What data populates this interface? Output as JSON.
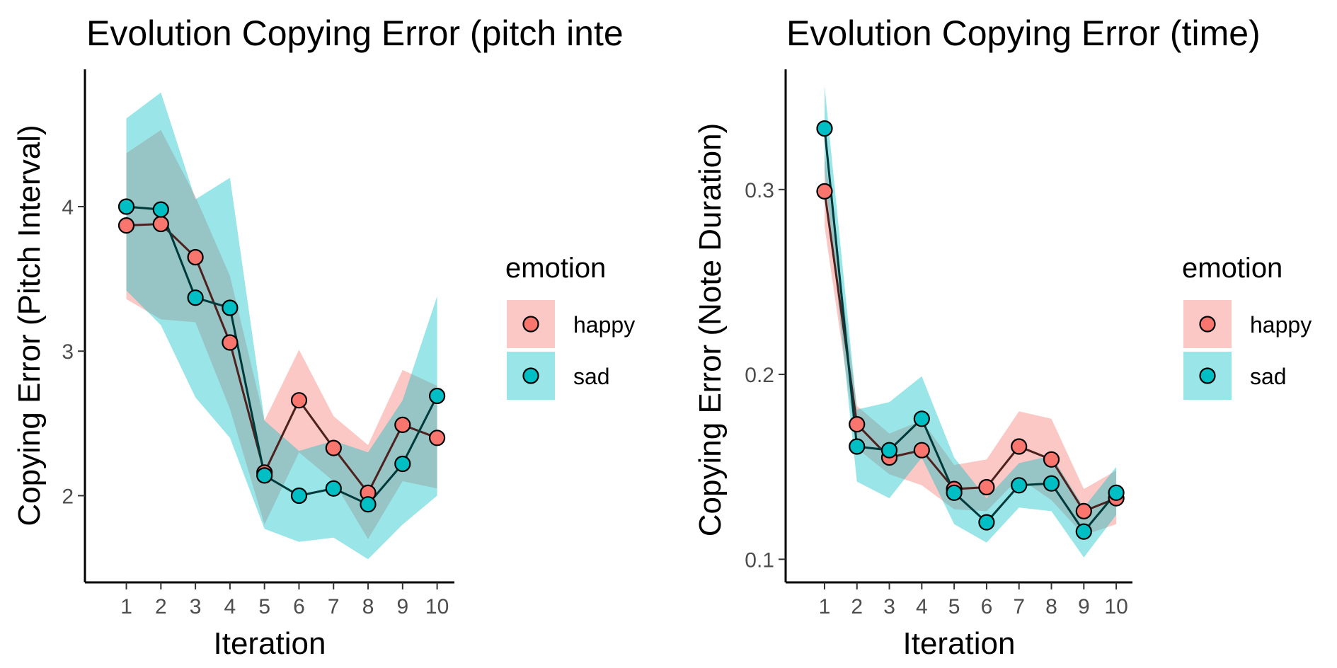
{
  "colors": {
    "happy": "#F8766D",
    "sad": "#00BFC4",
    "ribbon_alpha": 0.4,
    "point_stroke": "#000000"
  },
  "legend": {
    "title": "emotion",
    "items": [
      {
        "key": "happy",
        "label": "happy"
      },
      {
        "key": "sad",
        "label": "sad"
      }
    ]
  },
  "chart_data": [
    {
      "type": "line",
      "title": "Evolution Copying Error (pitch inte",
      "xlabel": "Iteration",
      "ylabel": "Copying Error (Pitch Interval)",
      "x": [
        1,
        2,
        3,
        4,
        5,
        6,
        7,
        8,
        9,
        10
      ],
      "xlim": [
        -0.2,
        10.5
      ],
      "ylim": [
        1.4,
        4.95
      ],
      "yticks": [
        2,
        3,
        4
      ],
      "ytick_labels": [
        "2",
        "3",
        "4"
      ],
      "grid": false,
      "legend_position": "right",
      "series": [
        {
          "name": "happy",
          "color_key": "happy",
          "y": [
            3.87,
            3.88,
            3.65,
            3.06,
            2.16,
            2.66,
            2.33,
            2.02,
            2.49,
            2.4
          ],
          "lower": [
            3.36,
            3.22,
            3.2,
            2.6,
            1.8,
            2.3,
            2.1,
            1.7,
            2.1,
            2.05
          ],
          "upper": [
            4.37,
            4.53,
            4.07,
            3.52,
            2.52,
            3.01,
            2.55,
            2.35,
            2.87,
            2.76
          ]
        },
        {
          "name": "sad",
          "color_key": "sad",
          "y": [
            4.0,
            3.98,
            3.37,
            3.3,
            2.14,
            2.0,
            2.05,
            1.94,
            2.22,
            2.69
          ],
          "lower": [
            3.42,
            3.18,
            2.68,
            2.4,
            1.77,
            1.68,
            1.71,
            1.56,
            1.8,
            2.0
          ],
          "upper": [
            4.61,
            4.79,
            4.05,
            4.2,
            2.52,
            2.31,
            2.38,
            2.3,
            2.66,
            3.38
          ]
        }
      ]
    },
    {
      "type": "line",
      "title": "Evolution Copying Error (time)",
      "xlabel": "Iteration",
      "ylabel": "Copying Error (Note Duration)",
      "x": [
        1,
        2,
        3,
        4,
        5,
        6,
        7,
        8,
        9,
        10
      ],
      "xlim": [
        -0.2,
        10.5
      ],
      "ylim": [
        0.0875,
        0.365
      ],
      "yticks": [
        0.1,
        0.2,
        0.3
      ],
      "ytick_labels": [
        "0.1",
        "0.2",
        "0.3"
      ],
      "grid": false,
      "legend_position": "right",
      "series": [
        {
          "name": "happy",
          "color_key": "happy",
          "y": [
            0.299,
            0.173,
            0.155,
            0.159,
            0.138,
            0.139,
            0.161,
            0.154,
            0.126,
            0.133
          ],
          "lower": [
            0.28,
            0.16,
            0.146,
            0.14,
            0.127,
            0.126,
            0.144,
            0.132,
            0.113,
            0.119
          ],
          "upper": [
            0.32,
            0.183,
            0.168,
            0.175,
            0.151,
            0.154,
            0.18,
            0.176,
            0.138,
            0.148
          ]
        },
        {
          "name": "sad",
          "color_key": "sad",
          "y": [
            0.333,
            0.161,
            0.159,
            0.176,
            0.136,
            0.12,
            0.14,
            0.141,
            0.115,
            0.136
          ],
          "lower": [
            0.31,
            0.142,
            0.133,
            0.155,
            0.119,
            0.109,
            0.128,
            0.126,
            0.101,
            0.124
          ],
          "upper": [
            0.356,
            0.181,
            0.185,
            0.199,
            0.155,
            0.133,
            0.152,
            0.156,
            0.128,
            0.15
          ]
        }
      ]
    }
  ]
}
